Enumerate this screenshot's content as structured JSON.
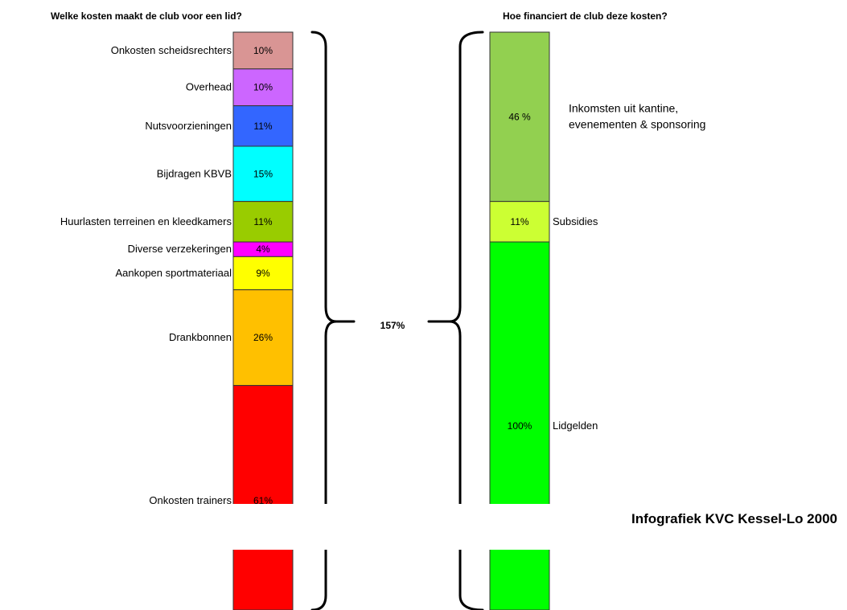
{
  "chart_data": [
    {
      "type": "bar",
      "stacked": true,
      "title": "Welke kosten maakt de club voor een lid?",
      "categories": [
        "Onkosten scheidsrechters",
        "Overhead",
        "Nutsvoorzieningen",
        "Bijdragen KBVB",
        "Huurlasten terreinen en kleedkamers",
        "Diverse verzekeringen",
        "Aankopen sportmateriaal",
        "Drankbonnen",
        "Onkosten trainers"
      ],
      "values": [
        10,
        10,
        11,
        15,
        11,
        4,
        9,
        26,
        61
      ],
      "value_labels": [
        "10%",
        "10%",
        "11%",
        "15%",
        "11%",
        "4%",
        "9%",
        "26%",
        "61%"
      ],
      "colors": [
        "#d99594",
        "#cc66ff",
        "#3366ff",
        "#00ffff",
        "#99cc00",
        "#ff00ff",
        "#ffff00",
        "#ffc000",
        "#ff0000"
      ],
      "total_label": "157%"
    },
    {
      "type": "bar",
      "stacked": true,
      "title": "Hoe financiert de club deze kosten?",
      "categories": [
        "Inkomsten uit kantine, evenementen & sponsoring",
        "Subsidies",
        "Lidgelden"
      ],
      "category_label_lines": [
        [
          "Inkomsten uit kantine,",
          "evenementen & sponsoring"
        ],
        [
          "Subsidies"
        ],
        [
          "Lidgelden"
        ]
      ],
      "values": [
        46,
        11,
        100
      ],
      "value_labels": [
        "46 %",
        "11%",
        "100%"
      ],
      "colors": [
        "#92d050",
        "#ccff33",
        "#00ff00"
      ]
    }
  ],
  "footer": {
    "credit": "Infografiek KVC Kessel-Lo 2000"
  }
}
